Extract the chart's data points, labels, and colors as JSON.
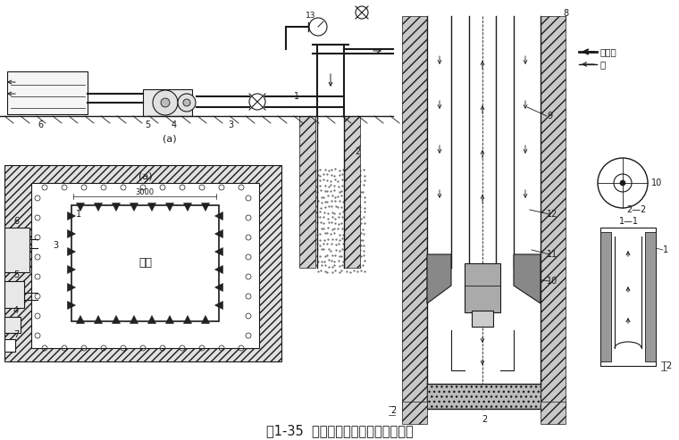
{
  "title": "图1-35  喷射井点设备及平面布置简图",
  "title_fontsize": 10.5,
  "bg_color": "#ffffff",
  "line_color": "#1a1a1a",
  "legend_high_pressure": "高压水",
  "legend_water": "水",
  "label_a_top": "(a)",
  "label_a_plan": "(a)",
  "label_3000": "3000",
  "label_jikeng": "基坑"
}
